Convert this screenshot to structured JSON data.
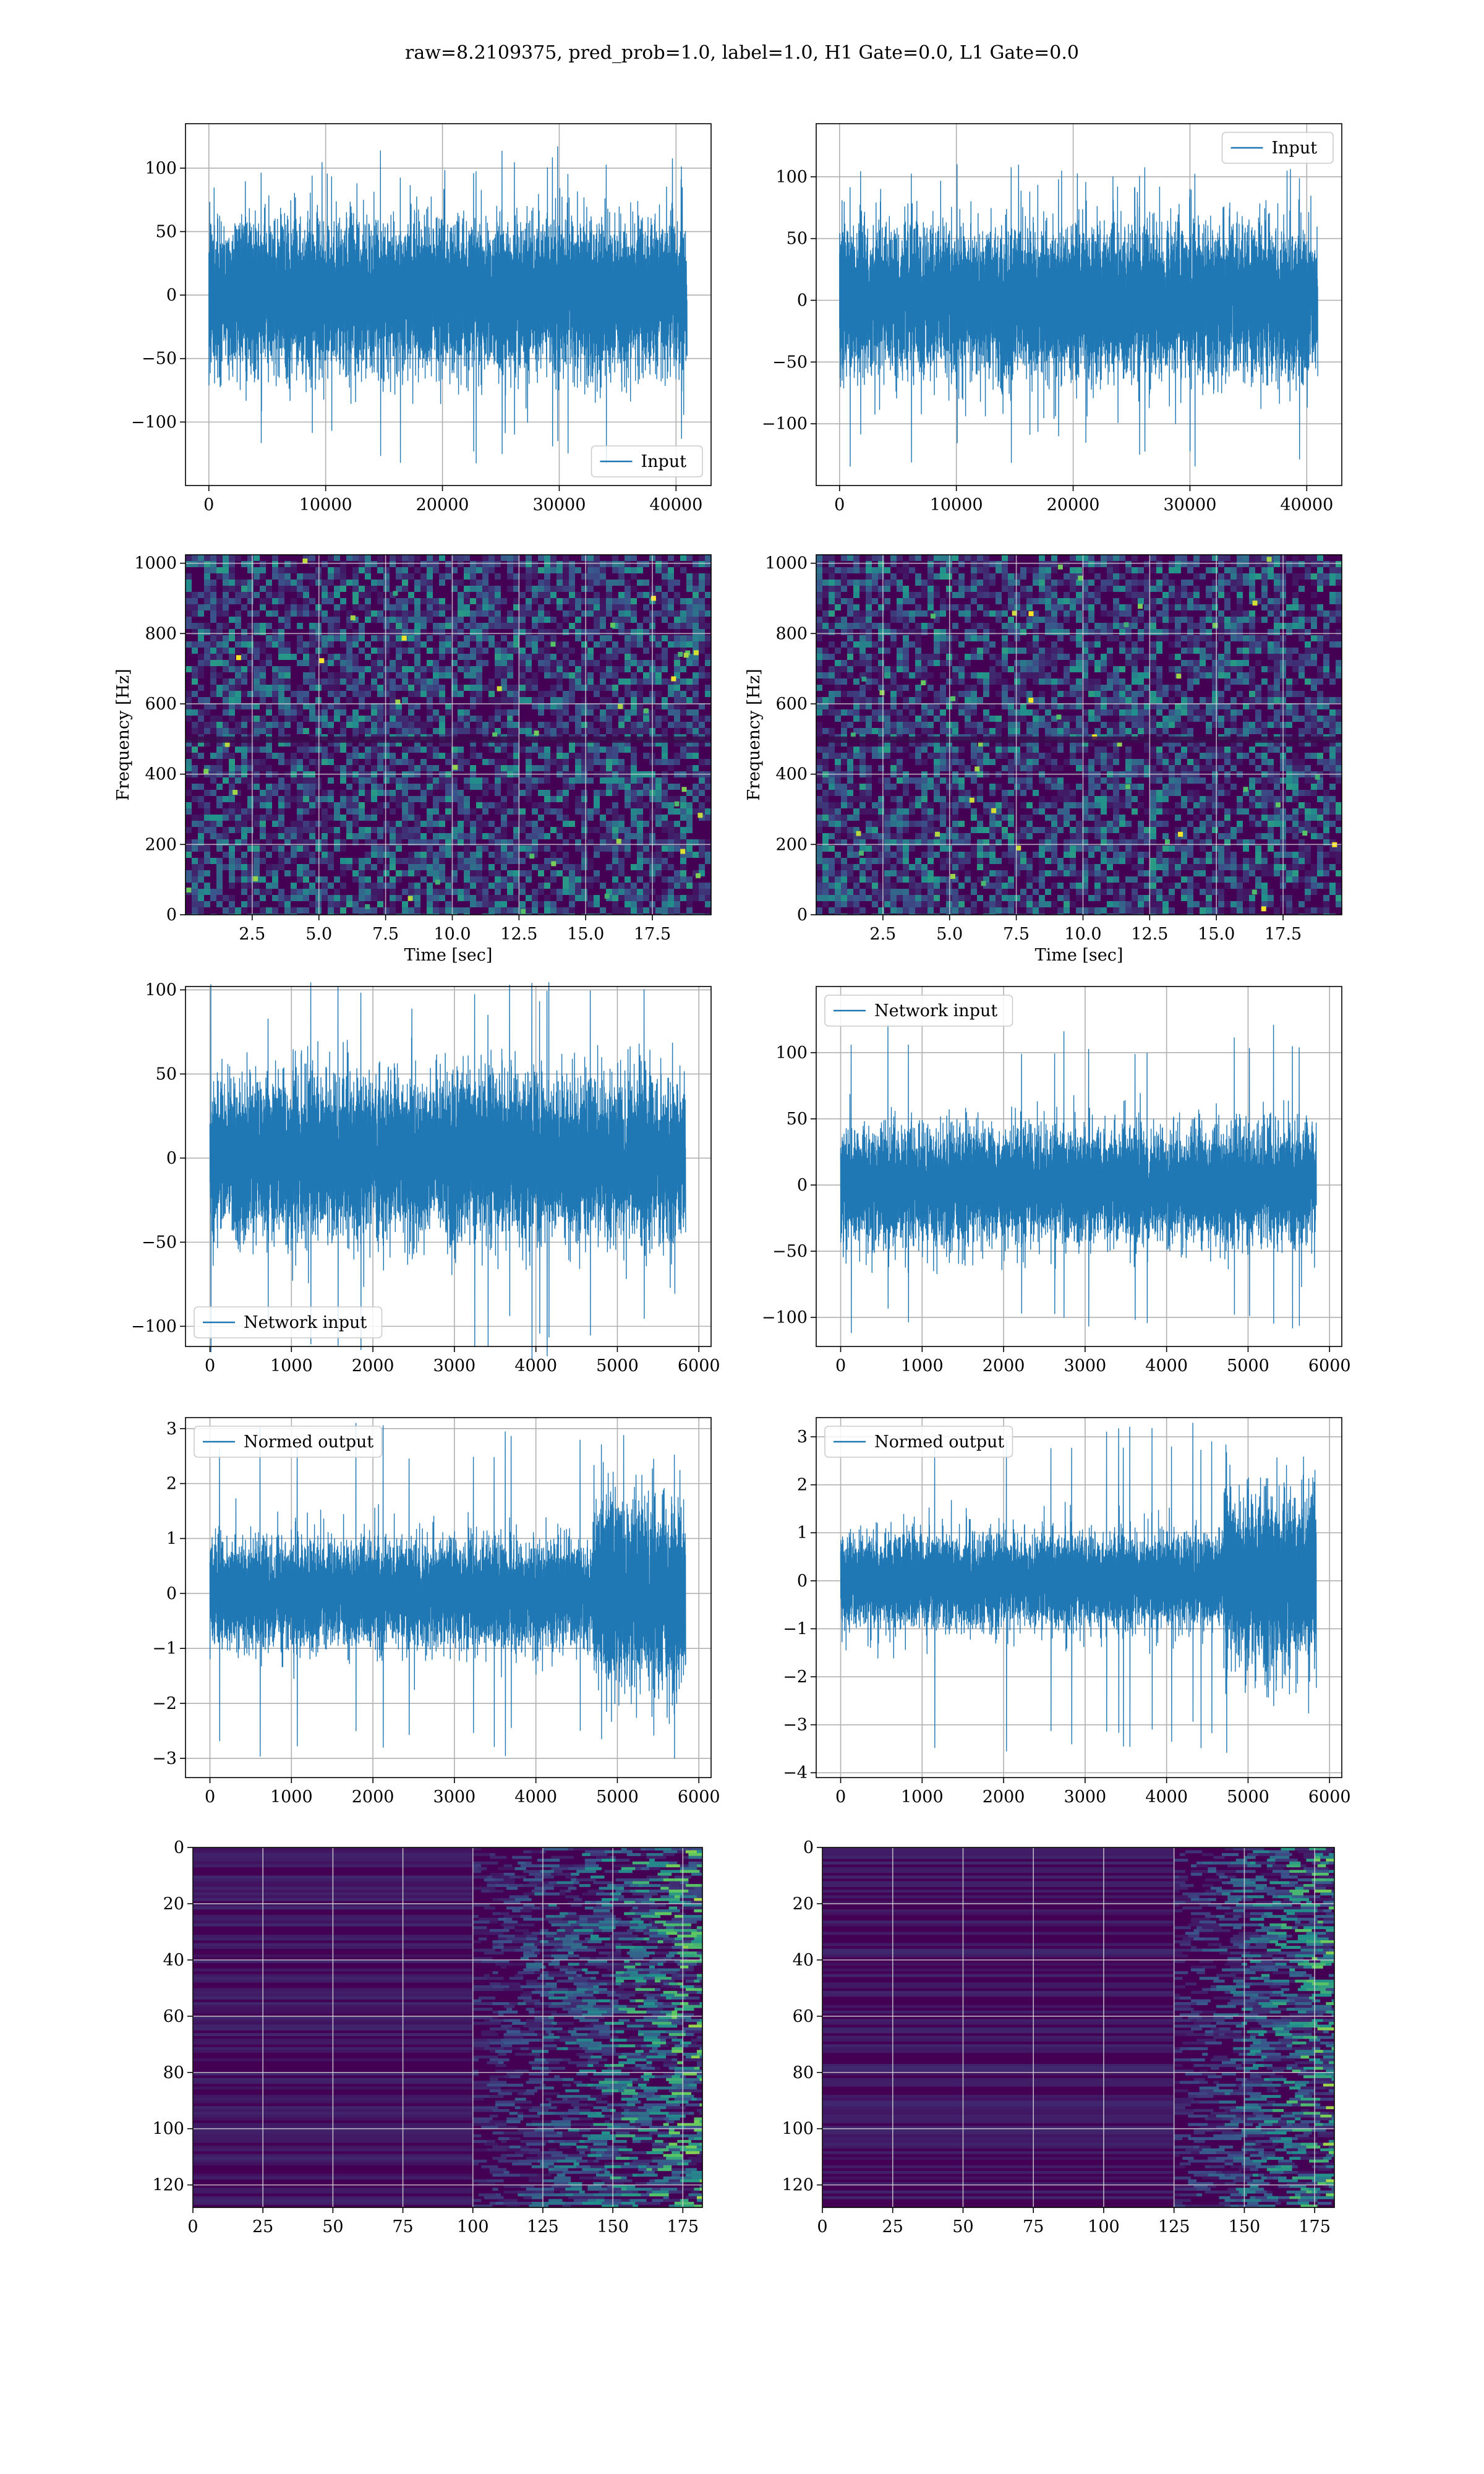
{
  "figure": {
    "title": "raw=8.2109375, pred_prob=1.0, label=1.0, H1 Gate=0.0, L1 Gate=0.0"
  },
  "colors": {
    "line": "#1f77b4",
    "grid": "#b0b0b0",
    "viridis_low": "#440154",
    "viridis_mid": "#21918c",
    "viridis_high": "#fde725"
  },
  "chart_data": [
    {
      "type": "line",
      "id": "h1-input",
      "series": [
        {
          "name": "Input",
          "n_samples": 40960,
          "mean": 0,
          "amplitude_std": 28,
          "max": 118,
          "min": -133
        }
      ],
      "xlim": [
        -2000,
        43000
      ],
      "ylim": [
        -150,
        135
      ],
      "xticks": [
        0,
        10000,
        20000,
        30000,
        40000
      ],
      "yticks": [
        -100,
        -50,
        0,
        50,
        100
      ],
      "xtick_labels": [
        "0",
        "10000",
        "20000",
        "30000",
        "40000"
      ],
      "ytick_labels": [
        "−100",
        "−50",
        "0",
        "50",
        "100"
      ],
      "xlabel": "",
      "ylabel": "",
      "grid": true,
      "legend": "lower-right"
    },
    {
      "type": "line",
      "id": "l1-input",
      "series": [
        {
          "name": "Input",
          "n_samples": 40960,
          "mean": 0,
          "amplitude_std": 28,
          "max": 112,
          "min": -136
        }
      ],
      "xlim": [
        -2000,
        43000
      ],
      "ylim": [
        -150,
        143
      ],
      "xticks": [
        0,
        10000,
        20000,
        30000,
        40000
      ],
      "yticks": [
        -100,
        -50,
        0,
        50,
        100
      ],
      "xtick_labels": [
        "0",
        "10000",
        "20000",
        "30000",
        "40000"
      ],
      "ytick_labels": [
        "−100",
        "−50",
        "0",
        "50",
        "100"
      ],
      "xlabel": "",
      "ylabel": "",
      "grid": true,
      "legend": "upper-right"
    },
    {
      "type": "heatmap",
      "id": "h1-spectrogram",
      "xlim": [
        0,
        19.7
      ],
      "ylim": [
        0,
        1024
      ],
      "xticks": [
        2.5,
        5.0,
        7.5,
        10.0,
        12.5,
        15.0,
        17.5
      ],
      "yticks": [
        0,
        200,
        400,
        600,
        800,
        1000
      ],
      "xtick_labels": [
        "2.5",
        "5.0",
        "7.5",
        "10.0",
        "12.5",
        "15.0",
        "17.5"
      ],
      "ytick_labels": [
        "0",
        "200",
        "400",
        "600",
        "800",
        "1000"
      ],
      "xlabel": "Time [sec]",
      "ylabel": "Frequency [Hz]",
      "grid": true,
      "colormap": "viridis"
    },
    {
      "type": "heatmap",
      "id": "l1-spectrogram",
      "xlim": [
        0,
        19.7
      ],
      "ylim": [
        0,
        1024
      ],
      "xticks": [
        2.5,
        5.0,
        7.5,
        10.0,
        12.5,
        15.0,
        17.5
      ],
      "yticks": [
        0,
        200,
        400,
        600,
        800,
        1000
      ],
      "xtick_labels": [
        "2.5",
        "5.0",
        "7.5",
        "10.0",
        "12.5",
        "15.0",
        "17.5"
      ],
      "ytick_labels": [
        "0",
        "200",
        "400",
        "600",
        "800",
        "1000"
      ],
      "xlabel": "Time [sec]",
      "ylabel": "Frequency [Hz]",
      "grid": true,
      "colormap": "viridis"
    },
    {
      "type": "line",
      "id": "h1-network-input",
      "series": [
        {
          "name": "Network input",
          "n_samples": 5840,
          "mean": 0,
          "amplitude_std": 22,
          "max": 105,
          "min": -120
        }
      ],
      "xlim": [
        -300,
        6150
      ],
      "ylim": [
        -112,
        102
      ],
      "xticks": [
        0,
        1000,
        2000,
        3000,
        4000,
        5000,
        6000
      ],
      "yticks": [
        -100,
        -50,
        0,
        50,
        100
      ],
      "xtick_labels": [
        "0",
        "1000",
        "2000",
        "3000",
        "4000",
        "5000",
        "6000"
      ],
      "ytick_labels": [
        "−100",
        "−50",
        "0",
        "50",
        "100"
      ],
      "xlabel": "",
      "ylabel": "",
      "grid": true,
      "legend": "lower-left"
    },
    {
      "type": "line",
      "id": "l1-network-input",
      "series": [
        {
          "name": "Network input",
          "n_samples": 5840,
          "mean": 0,
          "amplitude_std": 20,
          "max": 125,
          "min": -118
        }
      ],
      "xlim": [
        -300,
        6150
      ],
      "ylim": [
        -122,
        150
      ],
      "xticks": [
        0,
        1000,
        2000,
        3000,
        4000,
        5000,
        6000
      ],
      "yticks": [
        -100,
        -50,
        0,
        50,
        100
      ],
      "xtick_labels": [
        "0",
        "1000",
        "2000",
        "3000",
        "4000",
        "5000",
        "6000"
      ],
      "ytick_labels": [
        "−100",
        "−50",
        "0",
        "50",
        "100"
      ],
      "xlabel": "",
      "ylabel": "",
      "grid": true,
      "legend": "upper-left"
    },
    {
      "type": "line",
      "id": "h1-normed-output",
      "series": [
        {
          "name": "Normed output",
          "n_samples": 5840,
          "mean": 0,
          "amplitude_std": 0.45,
          "burst_start": 4700,
          "burst_std": 0.8,
          "max": 3.1,
          "min": -3.05
        }
      ],
      "xlim": [
        -300,
        6150
      ],
      "ylim": [
        -3.35,
        3.2
      ],
      "xticks": [
        0,
        1000,
        2000,
        3000,
        4000,
        5000,
        6000
      ],
      "yticks": [
        -3,
        -2,
        -1,
        0,
        1,
        2,
        3
      ],
      "xtick_labels": [
        "0",
        "1000",
        "2000",
        "3000",
        "4000",
        "5000",
        "6000"
      ],
      "ytick_labels": [
        "−3",
        "−2",
        "−1",
        "0",
        "1",
        "2",
        "3"
      ],
      "xlabel": "",
      "ylabel": "",
      "grid": true,
      "legend": "upper-left"
    },
    {
      "type": "line",
      "id": "l1-normed-output",
      "series": [
        {
          "name": "Normed output",
          "n_samples": 5840,
          "mean": 0,
          "amplitude_std": 0.45,
          "burst_start": 4700,
          "burst_std": 0.85,
          "max": 3.4,
          "min": -3.7
        }
      ],
      "xlim": [
        -300,
        6150
      ],
      "ylim": [
        -4.1,
        3.4
      ],
      "xticks": [
        0,
        1000,
        2000,
        3000,
        4000,
        5000,
        6000
      ],
      "yticks": [
        -4,
        -3,
        -2,
        -1,
        0,
        1,
        2,
        3
      ],
      "xtick_labels": [
        "0",
        "1000",
        "2000",
        "3000",
        "4000",
        "5000",
        "6000"
      ],
      "ytick_labels": [
        "−4",
        "−3",
        "−2",
        "−1",
        "0",
        "1",
        "2",
        "3"
      ],
      "xlabel": "",
      "ylabel": "",
      "grid": true,
      "legend": "upper-left"
    },
    {
      "type": "heatmap",
      "id": "h1-feature-map",
      "xlim": [
        0,
        182
      ],
      "ylim": [
        128,
        0
      ],
      "xticks": [
        0,
        25,
        50,
        75,
        100,
        125,
        150,
        175
      ],
      "yticks": [
        0,
        20,
        40,
        60,
        80,
        100,
        120
      ],
      "xtick_labels": [
        "0",
        "25",
        "50",
        "75",
        "100",
        "125",
        "150",
        "175"
      ],
      "ytick_labels": [
        "0",
        "20",
        "40",
        "60",
        "80",
        "100",
        "120"
      ],
      "rows": 128,
      "cols": 182,
      "activity_onset_col": 100,
      "xlabel": "",
      "ylabel": "",
      "grid": true,
      "colormap": "viridis"
    },
    {
      "type": "heatmap",
      "id": "l1-feature-map",
      "xlim": [
        0,
        182
      ],
      "ylim": [
        128,
        0
      ],
      "xticks": [
        0,
        25,
        50,
        75,
        100,
        125,
        150,
        175
      ],
      "yticks": [
        0,
        20,
        40,
        60,
        80,
        100,
        120
      ],
      "xtick_labels": [
        "0",
        "25",
        "50",
        "75",
        "100",
        "125",
        "150",
        "175"
      ],
      "ytick_labels": [
        "0",
        "20",
        "40",
        "60",
        "80",
        "100",
        "120"
      ],
      "rows": 128,
      "cols": 182,
      "activity_onset_col": 125,
      "xlabel": "",
      "ylabel": "",
      "grid": true,
      "colormap": "viridis"
    }
  ]
}
